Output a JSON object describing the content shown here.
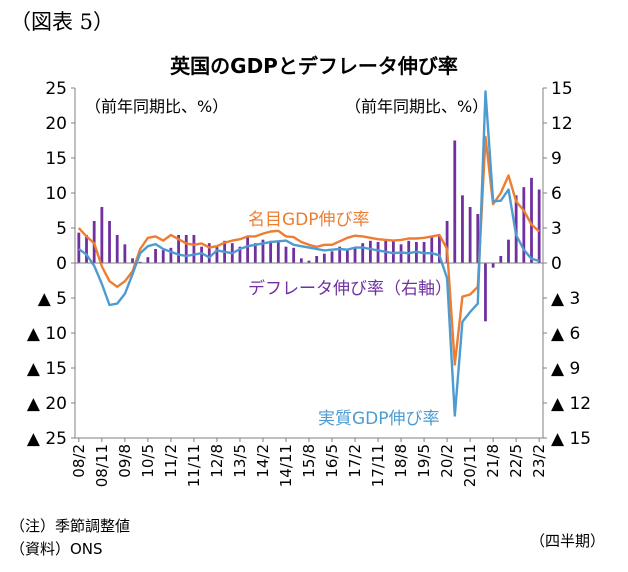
{
  "figure_label": "（図表 5）",
  "chart_data": {
    "type": "bar+line",
    "title": "英国のGDPとデフレータ伸び率",
    "left_axis_unit": "（前年同期比、%）",
    "right_axis_unit": "（前年同期比、%）",
    "left_axis": {
      "ylim": [
        -25,
        25
      ],
      "ticks": [
        "25",
        "20",
        "15",
        "10",
        "5",
        "0",
        "▲ 5",
        "▲ 10",
        "▲ 15",
        "▲ 20",
        "▲ 25"
      ]
    },
    "right_axis": {
      "ylim": [
        -15,
        15
      ],
      "ticks": [
        "15",
        "12",
        "9",
        "6",
        "3",
        "0",
        "▲ 3",
        "▲ 6",
        "▲ 9",
        "▲ 12",
        "▲ 15"
      ]
    },
    "x_tick_labels": [
      "08/2",
      "08/11",
      "09/8",
      "10/5",
      "11/2",
      "11/11",
      "12/8",
      "13/5",
      "14/2",
      "14/11",
      "15/8",
      "16/5",
      "17/2",
      "17/11",
      "18/8",
      "19/5",
      "20/2",
      "20/11",
      "21/8",
      "22/5",
      "23/2"
    ],
    "x_axis_unit": "（四半期）",
    "categories": [
      "08Q1",
      "08Q2",
      "08Q3",
      "08Q4",
      "09Q1",
      "09Q2",
      "09Q3",
      "09Q4",
      "10Q1",
      "10Q2",
      "10Q3",
      "10Q4",
      "11Q1",
      "11Q2",
      "11Q3",
      "11Q4",
      "12Q1",
      "12Q2",
      "12Q3",
      "12Q4",
      "13Q1",
      "13Q2",
      "13Q3",
      "13Q4",
      "14Q1",
      "14Q2",
      "14Q3",
      "14Q4",
      "15Q1",
      "15Q2",
      "15Q3",
      "15Q4",
      "16Q1",
      "16Q2",
      "16Q3",
      "16Q4",
      "17Q1",
      "17Q2",
      "17Q3",
      "17Q4",
      "18Q1",
      "18Q2",
      "18Q3",
      "18Q4",
      "19Q1",
      "19Q2",
      "19Q3",
      "19Q4",
      "20Q1",
      "20Q2",
      "20Q3",
      "20Q4",
      "21Q1",
      "21Q2",
      "21Q3",
      "21Q4",
      "22Q1",
      "22Q2",
      "22Q3",
      "22Q4",
      "23Q1"
    ],
    "series": [
      {
        "name": "デフレータ伸び率（右軸）",
        "kind": "bar",
        "axis": "right",
        "color": "#7030A0",
        "values": [
          2.6,
          2.4,
          3.6,
          4.8,
          3.6,
          2.4,
          1.6,
          0.4,
          0.1,
          0.5,
          1.2,
          1.1,
          1.3,
          2.4,
          2.4,
          2.4,
          1.4,
          1.7,
          1.5,
          1.9,
          1.7,
          1.4,
          2.2,
          1.7,
          2.0,
          1.9,
          1.8,
          1.4,
          1.3,
          0.4,
          0.2,
          0.6,
          0.8,
          1.0,
          1.4,
          1.2,
          1.3,
          1.7,
          1.9,
          1.8,
          1.9,
          2.0,
          1.6,
          1.9,
          1.8,
          1.8,
          2.2,
          2.3,
          3.6,
          10.5,
          5.8,
          4.8,
          4.2,
          -5.0,
          -0.4,
          0.6,
          2.0,
          5.8,
          6.5,
          7.3,
          6.3
        ]
      },
      {
        "name": "名目GDP伸び率",
        "kind": "line",
        "axis": "left",
        "color": "#ED7D31",
        "values": [
          5.0,
          3.8,
          2.8,
          -0.5,
          -2.6,
          -3.4,
          -2.6,
          -1.2,
          2.0,
          3.6,
          3.8,
          3.2,
          4.0,
          3.4,
          2.8,
          2.6,
          2.8,
          2.2,
          2.4,
          2.9,
          3.2,
          3.4,
          3.8,
          3.8,
          4.2,
          4.5,
          4.6,
          3.8,
          3.7,
          3.0,
          2.6,
          2.3,
          2.6,
          2.6,
          3.1,
          3.6,
          3.9,
          3.8,
          3.6,
          3.4,
          3.3,
          3.2,
          3.3,
          3.5,
          3.5,
          3.6,
          3.8,
          4.0,
          2.0,
          -14.5,
          -4.8,
          -4.5,
          -3.4,
          18.0,
          8.4,
          10.0,
          12.5,
          8.8,
          7.5,
          5.5,
          4.5
        ]
      },
      {
        "name": "実質GDP伸び率",
        "kind": "line",
        "axis": "left",
        "color": "#4E9BD0",
        "values": [
          2.0,
          1.2,
          -0.4,
          -3.0,
          -6.0,
          -5.8,
          -4.4,
          -1.6,
          1.4,
          2.4,
          2.7,
          2.0,
          1.6,
          1.2,
          1.0,
          1.2,
          1.4,
          0.8,
          1.8,
          1.6,
          1.4,
          2.0,
          2.4,
          2.6,
          2.8,
          3.0,
          3.1,
          3.2,
          2.6,
          2.4,
          2.2,
          2.0,
          1.8,
          1.9,
          2.0,
          1.9,
          2.2,
          2.2,
          2.0,
          1.8,
          1.6,
          1.4,
          1.5,
          1.4,
          1.6,
          1.4,
          1.4,
          1.1,
          -2.2,
          -21.8,
          -8.4,
          -7.0,
          -5.8,
          24.5,
          8.8,
          8.9,
          10.5,
          4.0,
          1.9,
          0.6,
          0.3
        ]
      }
    ],
    "annotations": [
      "名目GDP伸び率",
      "デフレータ伸び率（右軸）",
      "実質GDP伸び率"
    ],
    "grid": false,
    "legend": "inline labels"
  },
  "notes": {
    "adjustment": "（注）季節調整値",
    "source": "（資料）ONS"
  }
}
